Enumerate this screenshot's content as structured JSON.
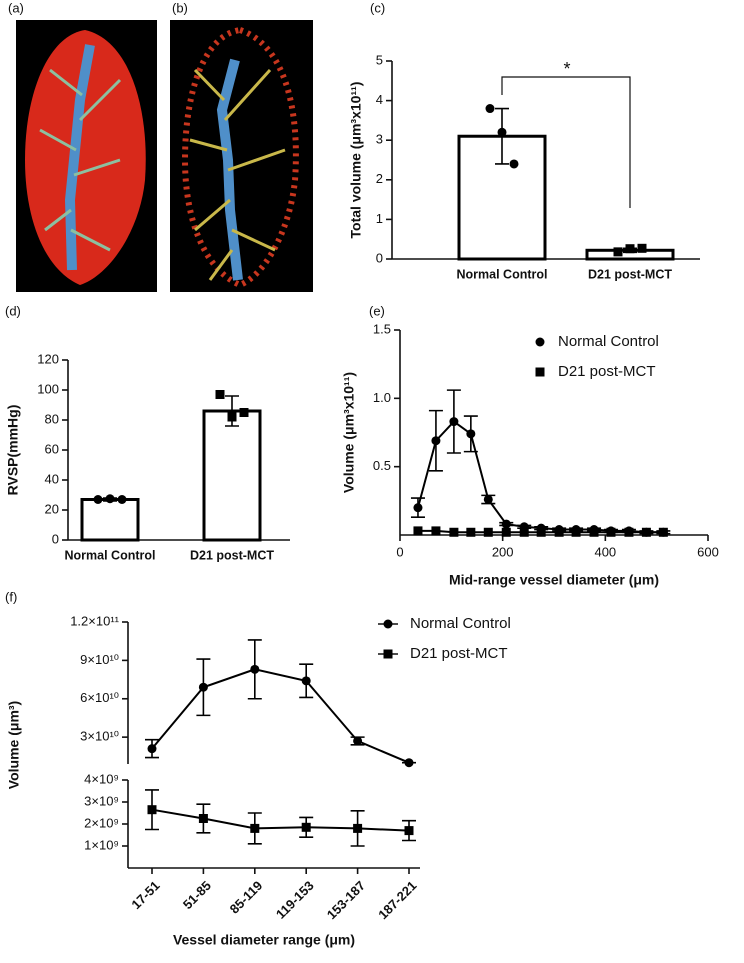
{
  "images": [
    {
      "label": "(a)"
    },
    {
      "label": "(b)"
    }
  ],
  "chart_data": [
    {
      "type": "bar",
      "panel": "(c)",
      "ylabel": "Total volume (μm³x10¹¹)",
      "categories": [
        "Normal Control",
        "D21 post-MCT"
      ],
      "values": [
        3.1,
        0.22
      ],
      "errors": [
        0.7,
        0.05
      ],
      "points": [
        [
          3.8,
          3.2,
          2.4
        ],
        [
          0.18,
          0.26,
          0.27
        ]
      ],
      "markers": [
        "circle",
        "square"
      ],
      "ylim": [
        0,
        5
      ],
      "yticks": [
        0,
        1,
        2,
        3,
        4,
        5
      ],
      "annotations": [
        "*"
      ],
      "color": "#000000"
    },
    {
      "type": "bar",
      "panel": "(d)",
      "ylabel": "RVSP(mmHg)",
      "categories": [
        "Normal Control",
        "D21 post-MCT"
      ],
      "values": [
        27,
        86
      ],
      "errors": [
        1,
        10
      ],
      "points": [
        [
          27,
          27.5,
          27
        ],
        [
          97,
          82,
          85
        ]
      ],
      "markers": [
        "circle",
        "square"
      ],
      "ylim": [
        0,
        120
      ],
      "yticks": [
        0,
        20,
        40,
        60,
        80,
        100,
        120
      ],
      "color": "#000000"
    },
    {
      "type": "line",
      "panel": "(e)",
      "ylabel": "Volume (μm³x10¹¹)",
      "xlabel": "Mid-range vessel diameter (μm)",
      "x": [
        35,
        70,
        105,
        138,
        172,
        207,
        242,
        275,
        310,
        343,
        378,
        411,
        446,
        480,
        513
      ],
      "series": [
        {
          "name": "Normal Control",
          "marker": "circle",
          "color": "#000000",
          "values": [
            0.2,
            0.69,
            0.83,
            0.74,
            0.26,
            0.08,
            0.06,
            0.05,
            0.04,
            0.04,
            0.04,
            0.03,
            0.03,
            0.02,
            0.02
          ],
          "errors": [
            0.07,
            0.22,
            0.23,
            0.13,
            0.03,
            0.01,
            0.01,
            0.01,
            0.01,
            0.01,
            0.01,
            0.01,
            0.01,
            0.01,
            0.01
          ]
        },
        {
          "name": "D21 post-MCT",
          "marker": "square",
          "color": "#000000",
          "values": [
            0.03,
            0.03,
            0.02,
            0.02,
            0.02,
            0.02,
            0.02,
            0.02,
            0.02,
            0.02,
            0.02,
            0.02,
            0.02,
            0.02,
            0.02
          ]
        }
      ],
      "xlim": [
        0,
        600
      ],
      "xticks": [
        0,
        200,
        400,
        600
      ],
      "ylim": [
        0,
        1.5
      ],
      "yticks": [
        0.5,
        {
          "value": 1,
          "label": "1.0"
        },
        1.5
      ],
      "legend": "top-right"
    },
    {
      "type": "line-broken",
      "panel": "(f)",
      "ylabel": "Volume (μm³)",
      "xlabel": "Vessel diameter range (μm)",
      "categories": [
        "17-51",
        "51-85",
        "85-119",
        "119-153",
        "153-187",
        "187-221"
      ],
      "series": [
        {
          "name": "Normal Control",
          "marker": "circle",
          "color": "#000000",
          "values": [
            21000000000,
            69000000000,
            83000000000,
            74000000000,
            27000000000,
            10000000000
          ],
          "errors": [
            7000000000,
            22000000000,
            23000000000,
            13000000000,
            3000000000,
            0
          ]
        },
        {
          "name": "D21 post-MCT",
          "marker": "square",
          "color": "#000000",
          "values": [
            2650000000,
            2250000000,
            1800000000,
            1850000000,
            1800000000,
            1700000000
          ],
          "errors": [
            900000000,
            650000000,
            700000000,
            450000000,
            800000000,
            450000000
          ]
        }
      ],
      "y_segments": [
        {
          "ylim": [
            0,
            4000000000
          ],
          "yticks": [
            {
              "value": 1000000000,
              "label": "1×10⁹"
            },
            {
              "value": 2000000000,
              "label": "2×10⁹"
            },
            {
              "value": 3000000000,
              "label": "3×10⁹"
            },
            {
              "value": 4000000000,
              "label": "4×10⁹"
            }
          ]
        },
        {
          "ylim": [
            9000000000,
            120000000000
          ],
          "yticks": [
            {
              "value": 30000000000,
              "label": "3×10¹⁰"
            },
            {
              "value": 60000000000,
              "label": "6×10¹⁰"
            },
            {
              "value": 90000000000,
              "label": "9×10¹⁰"
            },
            {
              "value": 120000000000,
              "label": "1.2×10¹¹"
            }
          ]
        }
      ],
      "legend": "top-right"
    }
  ]
}
